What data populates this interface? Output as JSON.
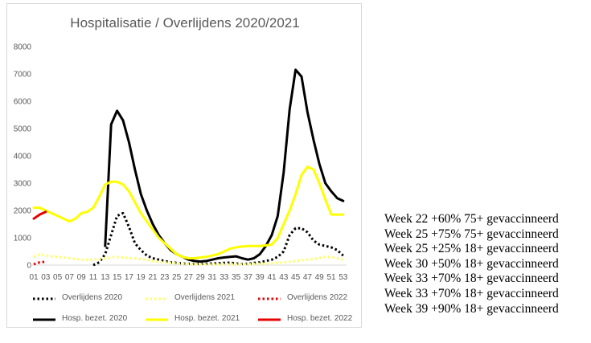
{
  "chart_data": {
    "type": "line",
    "title": "Hospitalisatie / Overlijdens 2020/2021",
    "ylim": [
      0,
      8000
    ],
    "yticks": [
      "0",
      "1000",
      "2000",
      "3000",
      "4000",
      "5000",
      "6000",
      "7000",
      "8000"
    ],
    "xticks": [
      "01",
      "03",
      "05",
      "07",
      "09",
      "11",
      "13",
      "15",
      "17",
      "19",
      "21",
      "23",
      "25",
      "27",
      "29",
      "31",
      "33",
      "35",
      "37",
      "39",
      "41",
      "43",
      "45",
      "47",
      "49",
      "51",
      "53"
    ],
    "grid": false,
    "legend_position": "bottom",
    "series": [
      {
        "name": "Overlijdens 2020",
        "color": "#000000",
        "style": "dotted",
        "width": 3,
        "x": [
          11,
          12,
          13,
          14,
          15,
          16,
          17,
          18,
          19,
          20,
          21,
          22,
          23,
          24,
          25,
          26,
          27,
          28,
          29,
          30,
          31,
          32,
          33,
          34,
          35,
          36,
          37,
          38,
          39,
          40,
          41,
          42,
          43,
          44,
          45,
          46,
          47,
          48,
          49,
          50,
          51,
          52,
          53
        ],
        "y": [
          0,
          100,
          400,
          1100,
          1800,
          1900,
          1400,
          800,
          550,
          350,
          250,
          200,
          150,
          100,
          80,
          60,
          50,
          40,
          40,
          50,
          60,
          70,
          80,
          90,
          60,
          40,
          50,
          80,
          100,
          150,
          200,
          300,
          500,
          1100,
          1350,
          1350,
          1200,
          900,
          750,
          700,
          650,
          550,
          350
        ]
      },
      {
        "name": "Overlijdens 2021",
        "color": "#ffff66",
        "style": "dotted",
        "width": 3,
        "x": [
          1,
          2,
          3,
          4,
          5,
          6,
          7,
          8,
          9,
          10,
          11,
          12,
          13,
          14,
          15,
          16,
          17,
          18,
          19,
          20,
          21,
          22,
          23,
          24,
          25,
          26,
          27,
          28,
          29,
          30,
          31,
          32,
          33,
          34,
          35,
          36,
          37,
          38,
          39,
          40,
          41,
          42,
          43,
          44,
          45,
          46,
          47,
          48,
          49,
          50,
          51,
          52,
          53
        ],
        "y": [
          300,
          400,
          350,
          320,
          300,
          280,
          250,
          220,
          200,
          200,
          200,
          220,
          250,
          280,
          300,
          280,
          260,
          240,
          220,
          200,
          150,
          120,
          100,
          80,
          60,
          50,
          40,
          30,
          30,
          30,
          30,
          30,
          30,
          30,
          30,
          30,
          30,
          40,
          50,
          60,
          70,
          80,
          100,
          120,
          150,
          180,
          200,
          220,
          260,
          300,
          300,
          250,
          200
        ]
      },
      {
        "name": "Overlijdens 2022",
        "color": "#e60000",
        "style": "dotted",
        "width": 3,
        "x": [
          1,
          2,
          3
        ],
        "y": [
          30,
          100,
          120
        ]
      },
      {
        "name": "Hosp. bezet. 2020",
        "color": "#000000",
        "style": "solid",
        "width": 3,
        "x": [
          13,
          14,
          15,
          16,
          17,
          18,
          19,
          20,
          21,
          22,
          23,
          24,
          25,
          26,
          27,
          28,
          29,
          30,
          31,
          32,
          33,
          34,
          35,
          36,
          37,
          38,
          39,
          40,
          41,
          42,
          43,
          44,
          45,
          46,
          47,
          48,
          49,
          50,
          51,
          52,
          53
        ],
        "y": [
          700,
          5150,
          5650,
          5300,
          4500,
          3500,
          2600,
          2000,
          1500,
          1100,
          800,
          550,
          400,
          300,
          200,
          150,
          130,
          150,
          200,
          250,
          280,
          300,
          320,
          250,
          200,
          250,
          400,
          700,
          1100,
          1800,
          3400,
          5700,
          7150,
          6900,
          5600,
          4600,
          3700,
          3000,
          2700,
          2450,
          2350
        ]
      },
      {
        "name": "Hosp. bezet. 2021",
        "color": "#ffff00",
        "style": "solid",
        "width": 3,
        "x": [
          1,
          2,
          3,
          4,
          5,
          6,
          7,
          8,
          9,
          10,
          11,
          12,
          13,
          14,
          15,
          16,
          17,
          18,
          19,
          20,
          21,
          22,
          23,
          24,
          25,
          26,
          27,
          28,
          29,
          30,
          31,
          32,
          33,
          34,
          35,
          36,
          37,
          38,
          39,
          40,
          41,
          42,
          43,
          44,
          45,
          46,
          47,
          48,
          49,
          50,
          51,
          52,
          53
        ],
        "y": [
          2100,
          2100,
          2000,
          1900,
          1800,
          1700,
          1600,
          1700,
          1900,
          1950,
          2100,
          2500,
          2950,
          3050,
          3050,
          2950,
          2700,
          2300,
          1900,
          1600,
          1300,
          1000,
          800,
          600,
          400,
          300,
          250,
          250,
          280,
          300,
          350,
          400,
          500,
          600,
          650,
          680,
          700,
          700,
          700,
          720,
          750,
          1000,
          1500,
          2000,
          2600,
          3300,
          3600,
          3500,
          3000,
          2400,
          1850,
          1850,
          1850
        ]
      },
      {
        "name": "Hosp. bezet. 2022",
        "color": "#e60000",
        "style": "solid",
        "width": 3,
        "x": [
          1,
          2,
          3
        ],
        "y": [
          1700,
          1850,
          1950
        ]
      }
    ]
  },
  "notes": [
    "Week 22 +60% 75+ gevaccinneerd",
    "Week 25 +75% 75+ gevaccinneerd",
    "Week 25 +25% 18+ gevaccinneerd",
    "Week 30 +50% 18+ gevaccinneerd",
    "Week 33 +70% 18+ gevaccinneerd",
    "Week 33 +70% 18+ gevaccinneerd",
    "Week 39 +90% 18+ gevaccinneerd"
  ]
}
